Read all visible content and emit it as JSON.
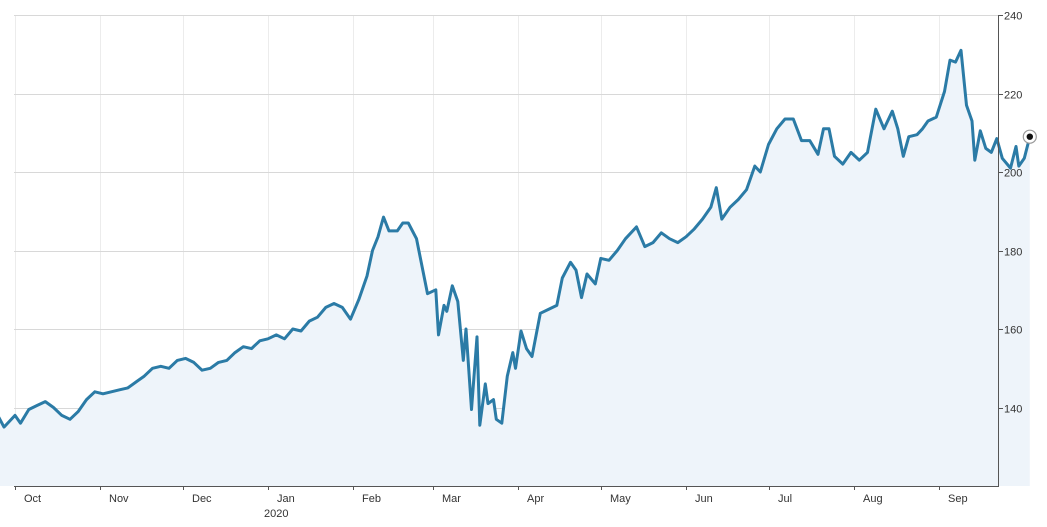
{
  "chart_data": {
    "type": "area",
    "title": "",
    "xlabel": "",
    "ylabel": "",
    "ylim": [
      120,
      240
    ],
    "y_ticks": [
      140,
      160,
      180,
      200,
      220,
      240
    ],
    "grid": true,
    "y_axis_side": "right",
    "colors": {
      "line": "#2b7ba6",
      "fill": "#eef4fa",
      "grid": "#d8d8d8",
      "marker": "#111111"
    },
    "month_labels": [
      {
        "label": "Oct",
        "date": "2019-10-01"
      },
      {
        "label": "Nov",
        "date": "2019-11-01"
      },
      {
        "label": "Dec",
        "date": "2019-12-01"
      },
      {
        "label": "Jan",
        "date": "2020-01-01"
      },
      {
        "label": "Feb",
        "date": "2020-02-01"
      },
      {
        "label": "Mar",
        "date": "2020-03-01"
      },
      {
        "label": "Apr",
        "date": "2020-04-01"
      },
      {
        "label": "May",
        "date": "2020-05-01"
      },
      {
        "label": "Jun",
        "date": "2020-06-01"
      },
      {
        "label": "Jul",
        "date": "2020-07-01"
      },
      {
        "label": "Aug",
        "date": "2020-08-01"
      },
      {
        "label": "Sep",
        "date": "2020-09-01"
      }
    ],
    "year_label": {
      "label": "2020",
      "date": "2020-01-01"
    },
    "series": [
      {
        "points": [
          [
            "2019-09-24",
            139
          ],
          [
            "2019-09-27",
            135
          ],
          [
            "2019-10-01",
            138
          ],
          [
            "2019-10-03",
            136
          ],
          [
            "2019-10-06",
            139.5
          ],
          [
            "2019-10-09",
            140.5
          ],
          [
            "2019-10-12",
            141.5
          ],
          [
            "2019-10-15",
            140
          ],
          [
            "2019-10-18",
            138
          ],
          [
            "2019-10-21",
            137
          ],
          [
            "2019-10-24",
            139
          ],
          [
            "2019-10-27",
            142
          ],
          [
            "2019-10-30",
            144
          ],
          [
            "2019-11-02",
            143.5
          ],
          [
            "2019-11-05",
            144
          ],
          [
            "2019-11-08",
            144.5
          ],
          [
            "2019-11-11",
            145
          ],
          [
            "2019-11-14",
            146.5
          ],
          [
            "2019-11-17",
            148
          ],
          [
            "2019-11-20",
            150
          ],
          [
            "2019-11-23",
            150.5
          ],
          [
            "2019-11-26",
            150
          ],
          [
            "2019-11-29",
            152
          ],
          [
            "2019-12-02",
            152.5
          ],
          [
            "2019-12-05",
            151.5
          ],
          [
            "2019-12-08",
            149.5
          ],
          [
            "2019-12-11",
            150
          ],
          [
            "2019-12-14",
            151.5
          ],
          [
            "2019-12-17",
            152
          ],
          [
            "2019-12-20",
            154
          ],
          [
            "2019-12-23",
            155.5
          ],
          [
            "2019-12-26",
            155
          ],
          [
            "2019-12-29",
            157
          ],
          [
            "2020-01-01",
            157.5
          ],
          [
            "2020-01-04",
            158.5
          ],
          [
            "2020-01-07",
            157.5
          ],
          [
            "2020-01-10",
            160
          ],
          [
            "2020-01-13",
            159.5
          ],
          [
            "2020-01-16",
            162
          ],
          [
            "2020-01-19",
            163
          ],
          [
            "2020-01-22",
            165.5
          ],
          [
            "2020-01-25",
            166.5
          ],
          [
            "2020-01-28",
            165.5
          ],
          [
            "2020-01-31",
            162.5
          ],
          [
            "2020-02-03",
            167.5
          ],
          [
            "2020-02-06",
            173.5
          ],
          [
            "2020-02-08",
            180
          ],
          [
            "2020-02-10",
            183.5
          ],
          [
            "2020-02-12",
            188.5
          ],
          [
            "2020-02-14",
            185
          ],
          [
            "2020-02-17",
            185
          ],
          [
            "2020-02-19",
            187
          ],
          [
            "2020-02-21",
            187
          ],
          [
            "2020-02-24",
            183
          ],
          [
            "2020-02-26",
            176
          ],
          [
            "2020-02-28",
            169
          ],
          [
            "2020-03-02",
            170
          ],
          [
            "2020-03-03",
            158.5
          ],
          [
            "2020-03-05",
            166
          ],
          [
            "2020-03-06",
            164.5
          ],
          [
            "2020-03-08",
            171
          ],
          [
            "2020-03-10",
            167
          ],
          [
            "2020-03-12",
            152
          ],
          [
            "2020-03-13",
            160
          ],
          [
            "2020-03-15",
            139.5
          ],
          [
            "2020-03-17",
            158
          ],
          [
            "2020-03-18",
            135.5
          ],
          [
            "2020-03-20",
            146
          ],
          [
            "2020-03-21",
            141
          ],
          [
            "2020-03-23",
            142
          ],
          [
            "2020-03-24",
            137
          ],
          [
            "2020-03-26",
            136
          ],
          [
            "2020-03-28",
            148
          ],
          [
            "2020-03-30",
            154
          ],
          [
            "2020-03-31",
            150
          ],
          [
            "2020-04-02",
            159.5
          ],
          [
            "2020-04-04",
            155
          ],
          [
            "2020-04-06",
            153
          ],
          [
            "2020-04-09",
            164
          ],
          [
            "2020-04-12",
            165
          ],
          [
            "2020-04-15",
            166
          ],
          [
            "2020-04-17",
            173
          ],
          [
            "2020-04-20",
            177
          ],
          [
            "2020-04-22",
            175
          ],
          [
            "2020-04-24",
            168
          ],
          [
            "2020-04-26",
            174
          ],
          [
            "2020-04-29",
            171.5
          ],
          [
            "2020-05-01",
            178
          ],
          [
            "2020-05-04",
            177.5
          ],
          [
            "2020-05-07",
            180
          ],
          [
            "2020-05-10",
            183
          ],
          [
            "2020-05-14",
            186
          ],
          [
            "2020-05-17",
            181
          ],
          [
            "2020-05-20",
            182
          ],
          [
            "2020-05-23",
            184.5
          ],
          [
            "2020-05-26",
            183
          ],
          [
            "2020-05-29",
            182
          ],
          [
            "2020-06-01",
            183.5
          ],
          [
            "2020-06-04",
            185.5
          ],
          [
            "2020-06-07",
            188
          ],
          [
            "2020-06-10",
            191
          ],
          [
            "2020-06-12",
            196
          ],
          [
            "2020-06-14",
            188
          ],
          [
            "2020-06-17",
            191
          ],
          [
            "2020-06-20",
            193
          ],
          [
            "2020-06-23",
            195.5
          ],
          [
            "2020-06-26",
            201.5
          ],
          [
            "2020-06-28",
            200
          ],
          [
            "2020-07-01",
            207
          ],
          [
            "2020-07-04",
            211
          ],
          [
            "2020-07-07",
            213.5
          ],
          [
            "2020-07-10",
            213.5
          ],
          [
            "2020-07-13",
            208
          ],
          [
            "2020-07-16",
            208
          ],
          [
            "2020-07-19",
            204.5
          ],
          [
            "2020-07-21",
            211
          ],
          [
            "2020-07-23",
            211
          ],
          [
            "2020-07-25",
            204
          ],
          [
            "2020-07-28",
            202
          ],
          [
            "2020-07-31",
            205
          ],
          [
            "2020-08-03",
            203
          ],
          [
            "2020-08-06",
            205
          ],
          [
            "2020-08-09",
            216
          ],
          [
            "2020-08-12",
            211
          ],
          [
            "2020-08-15",
            215.5
          ],
          [
            "2020-08-17",
            211
          ],
          [
            "2020-08-19",
            204
          ],
          [
            "2020-08-21",
            209
          ],
          [
            "2020-08-24",
            209.5
          ],
          [
            "2020-08-26",
            211
          ],
          [
            "2020-08-28",
            213
          ],
          [
            "2020-08-31",
            214
          ],
          [
            "2020-09-03",
            220.5
          ],
          [
            "2020-09-05",
            228.5
          ],
          [
            "2020-09-07",
            228
          ],
          [
            "2020-09-09",
            231
          ],
          [
            "2020-09-11",
            217
          ],
          [
            "2020-09-13",
            213
          ],
          [
            "2020-09-14",
            203
          ],
          [
            "2020-09-16",
            210.5
          ],
          [
            "2020-09-18",
            206
          ],
          [
            "2020-09-20",
            205
          ],
          [
            "2020-09-22",
            208.5
          ],
          [
            "2020-09-24",
            203.5
          ],
          [
            "2020-09-27",
            201
          ],
          [
            "2020-09-29",
            206.5
          ],
          [
            "2020-09-30",
            201.5
          ],
          [
            "2020-10-02",
            203.5
          ],
          [
            "2020-10-04",
            209
          ]
        ]
      }
    ]
  }
}
